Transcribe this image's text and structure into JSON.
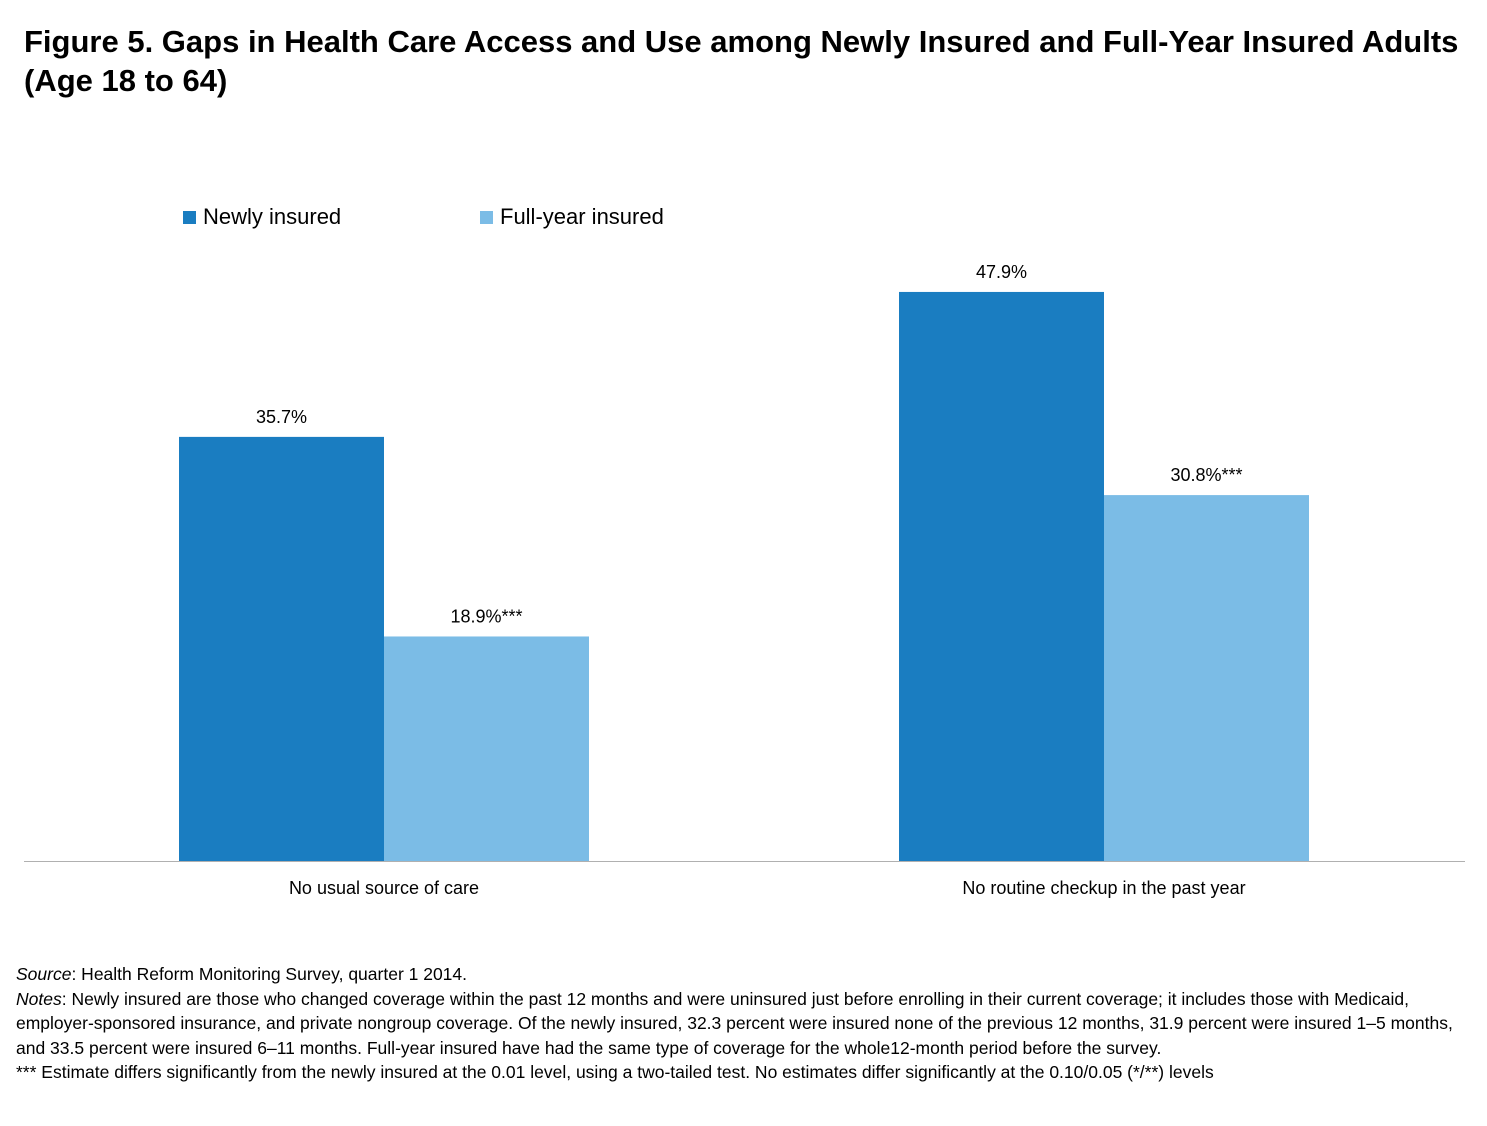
{
  "title": "Figure 5.  Gaps in Health Care Access and Use among Newly Insured and Full-Year Insured Adults (Age 18 to 64)",
  "colors": {
    "newly": "#1a7dc1",
    "full": "#7bbce6",
    "axis": "#b0b0b0"
  },
  "chart_data": {
    "type": "bar",
    "categories": [
      "No usual source of care",
      "No routine checkup in the past year"
    ],
    "series": [
      {
        "name": "Newly insured",
        "values": [
          35.7,
          47.9
        ],
        "labels": [
          "35.7%",
          "47.9%"
        ]
      },
      {
        "name": "Full-year insured",
        "values": [
          18.9,
          30.8
        ],
        "labels": [
          "18.9%***",
          "30.8%***"
        ]
      }
    ],
    "ylim": [
      0,
      50
    ],
    "grid": false,
    "legend": "top-left"
  },
  "footnotes": {
    "source_label": "Source",
    "source_text": ": Health Reform Monitoring Survey, quarter 1 2014.",
    "notes_label": "Notes",
    "notes_text": ": Newly insured are those who changed coverage within the past 12 months and were uninsured just before enrolling in their current coverage; it includes those with Medicaid, employer-sponsored insurance, and private nongroup coverage. Of the newly insured, 32.3 percent were insured none of the previous 12 months, 31.9 percent were insured 1–5 months, and 33.5 percent were insured 6–11 months. Full-year insured have had the same type of coverage for the whole12-month period before the survey.",
    "significance": "*** Estimate differs significantly from the newly insured at the 0.01 level, using a two-tailed test. No estimates differ significantly at the 0.10/0.05 (*/**) levels"
  }
}
